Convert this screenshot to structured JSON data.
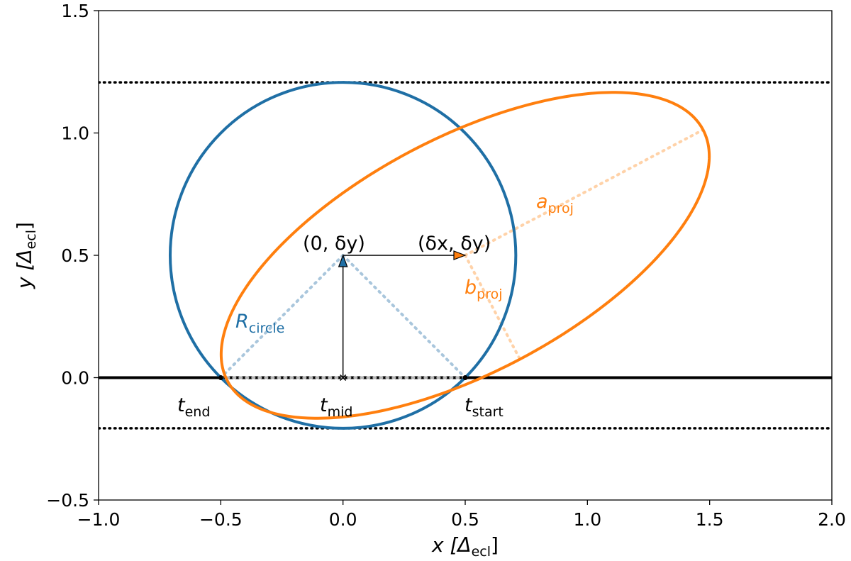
{
  "chart_data": {
    "type": "line",
    "xlim": [
      -1.0,
      2.0
    ],
    "ylim": [
      -0.5,
      1.5
    ],
    "x_ticks": [
      -1.0,
      -0.5,
      0.0,
      0.5,
      1.0,
      1.5,
      2.0
    ],
    "x_tick_labels": [
      "−1.0",
      "−0.5",
      "0.0",
      "0.5",
      "1.0",
      "1.5",
      "2.0"
    ],
    "y_ticks": [
      -0.5,
      0.0,
      0.5,
      1.0,
      1.5
    ],
    "y_tick_labels": [
      "−0.5",
      "0.0",
      "0.5",
      "1.0",
      "1.5"
    ],
    "xlabel": {
      "main": "x [Δ",
      "sub": "ecl",
      "close": "]"
    },
    "ylabel": {
      "main": "y [Δ",
      "sub": "ecl",
      "close": "]"
    },
    "grid": false,
    "colors": {
      "circle": "#1f6fa5",
      "ellipse": "#ff7f0e",
      "line": "#000000",
      "helper": "#a9c6dc",
      "faint_orange": "#ffd2a8"
    },
    "horizontal_lines": [
      {
        "y": 0.0,
        "style": "solid"
      },
      {
        "y": 1.207,
        "style": "dotted"
      },
      {
        "y": -0.207,
        "style": "dotted"
      }
    ],
    "circle": {
      "center": [
        0.0,
        0.5
      ],
      "radius": 0.707
    },
    "ellipse": {
      "center": [
        0.5,
        0.5
      ],
      "a_proj": 1.1,
      "b_proj": 0.48,
      "angle_deg": 27.8
    },
    "points": {
      "t_end": [
        -0.5,
        0.0
      ],
      "t_mid": [
        0.0,
        0.0
      ],
      "t_start": [
        0.5,
        0.0
      ],
      "circle_center": [
        0.0,
        0.5
      ],
      "ellipse_center": [
        0.5,
        0.5
      ]
    },
    "annotations": {
      "t_end": {
        "main": "t",
        "sub": "end"
      },
      "t_mid": {
        "main": "t",
        "sub": "mid"
      },
      "t_start": {
        "main": "t",
        "sub": "start"
      },
      "center_circle": "(0, δy)",
      "center_ellipse": "(δx, δy)",
      "r_circle": {
        "main": "R",
        "sub": "circle"
      },
      "a_proj": {
        "main": "a",
        "sub": "proj"
      },
      "b_proj": {
        "main": "b",
        "sub": "proj"
      }
    }
  }
}
